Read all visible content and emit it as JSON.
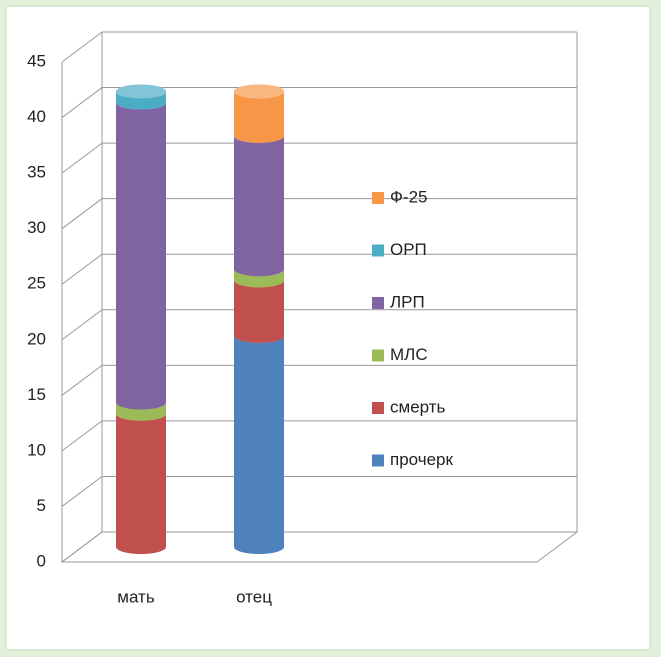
{
  "chart_data": {
    "type": "bar3d_stacked",
    "categories": [
      "мать",
      "отец"
    ],
    "series": [
      {
        "name": "прочерк",
        "color": "#4f81bd",
        "values": [
          0,
          19
        ]
      },
      {
        "name": "смерть",
        "color": "#c0504d",
        "values": [
          12,
          5
        ]
      },
      {
        "name": "МЛС",
        "color": "#9bbb59",
        "values": [
          1,
          1
        ]
      },
      {
        "name": "ЛРП",
        "color": "#8064a2",
        "values": [
          27,
          12
        ]
      },
      {
        "name": "ОРП",
        "color": "#4bacc6",
        "values": [
          1,
          0
        ]
      },
      {
        "name": "Ф-25",
        "color": "#f79646",
        "values": [
          0,
          4
        ]
      }
    ],
    "ylim": [
      0,
      45
    ],
    "yticks": [
      0,
      5,
      10,
      15,
      20,
      25,
      30,
      35,
      40,
      45
    ],
    "grid": true,
    "legend": "right"
  }
}
